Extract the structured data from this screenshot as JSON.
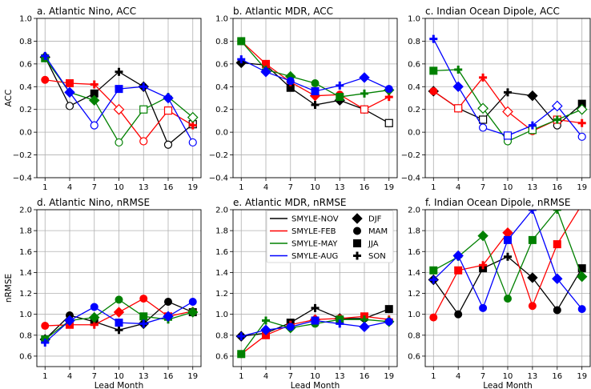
{
  "legend": {
    "series": [
      {
        "label": "SMYLE-NOV",
        "color": "#000000"
      },
      {
        "label": "SMYLE-FEB",
        "color": "#ff0000"
      },
      {
        "label": "SMYLE-MAY",
        "color": "#008000"
      },
      {
        "label": "SMYLE-AUG",
        "color": "#0000ff"
      }
    ],
    "markers": [
      {
        "label": "DJF",
        "marker": "diamond"
      },
      {
        "label": "MAM",
        "marker": "circle"
      },
      {
        "label": "JJA",
        "marker": "square"
      },
      {
        "label": "SON",
        "marker": "plus"
      }
    ]
  },
  "chart_data": [
    {
      "type": "line",
      "title": "a. Atlantic Nino, ACC",
      "xlabel": "",
      "ylabel": "ACC",
      "x": [
        1,
        4,
        7,
        10,
        13,
        16,
        19
      ],
      "ylim": [
        -0.4,
        1.0
      ],
      "yticks": [
        "−0.4",
        "−0.2",
        "0.0",
        "0.2",
        "0.4",
        "0.6",
        "0.8",
        "1.0"
      ],
      "series": [
        {
          "name": "SMYLE-NOV",
          "color": "#000000",
          "values": [
            0.66,
            0.23,
            0.34,
            0.53,
            0.4,
            -0.11,
            0.07
          ],
          "markers": [
            "diamond",
            "circle-o",
            "square",
            "plus",
            "diamond",
            "circle-o",
            "square-o"
          ]
        },
        {
          "name": "SMYLE-FEB",
          "color": "#ff0000",
          "values": [
            0.46,
            0.43,
            0.42,
            0.2,
            -0.08,
            0.19,
            0.06
          ],
          "markers": [
            "circle",
            "square",
            "plus",
            "diamond-o",
            "circle-o",
            "square-o",
            "plus"
          ]
        },
        {
          "name": "SMYLE-MAY",
          "color": "#008000",
          "values": [
            0.65,
            0.35,
            0.28,
            -0.09,
            0.2,
            0.31,
            0.13
          ],
          "markers": [
            "square",
            "plus",
            "diamond",
            "circle-o",
            "square-o",
            "plus",
            "diamond-o"
          ]
        },
        {
          "name": "SMYLE-AUG",
          "color": "#0000ff",
          "values": [
            0.67,
            0.35,
            0.06,
            0.38,
            0.4,
            0.3,
            -0.09
          ],
          "markers": [
            "plus",
            "diamond",
            "circle-o",
            "square",
            "plus",
            "diamond",
            "circle-o"
          ]
        }
      ]
    },
    {
      "type": "line",
      "title": "b. Atlantic MDR, ACC",
      "xlabel": "",
      "ylabel": "",
      "x": [
        1,
        4,
        7,
        10,
        13,
        16,
        19
      ],
      "ylim": [
        -0.4,
        1.0
      ],
      "yticks": [
        "−0.4",
        "−0.2",
        "0.0",
        "0.2",
        "0.4",
        "0.6",
        "0.8",
        "1.0"
      ],
      "series": [
        {
          "name": "SMYLE-NOV",
          "color": "#000000",
          "values": [
            0.61,
            0.59,
            0.39,
            0.24,
            0.28,
            0.2,
            0.08
          ],
          "markers": [
            "diamond",
            "circle",
            "square",
            "plus",
            "diamond",
            "circle-o",
            "square-o"
          ]
        },
        {
          "name": "SMYLE-FEB",
          "color": "#ff0000",
          "values": [
            0.8,
            0.6,
            0.44,
            0.32,
            0.33,
            0.2,
            0.31
          ],
          "markers": [
            "circle",
            "square",
            "plus",
            "diamond",
            "circle",
            "square-o",
            "plus"
          ]
        },
        {
          "name": "SMYLE-MAY",
          "color": "#008000",
          "values": [
            0.8,
            0.55,
            0.49,
            0.43,
            0.31,
            0.34,
            0.37
          ],
          "markers": [
            "square",
            "plus",
            "diamond",
            "circle",
            "square",
            "plus",
            "diamond"
          ]
        },
        {
          "name": "SMYLE-AUG",
          "color": "#0000ff",
          "values": [
            0.64,
            0.53,
            0.45,
            0.36,
            0.41,
            0.48,
            0.38
          ],
          "markers": [
            "plus",
            "diamond",
            "circle",
            "square",
            "plus",
            "diamond",
            "circle"
          ]
        }
      ]
    },
    {
      "type": "line",
      "title": "c. Indian Ocean Dipole, ACC",
      "xlabel": "",
      "ylabel": "",
      "x": [
        1,
        4,
        7,
        10,
        13,
        16,
        19
      ],
      "ylim": [
        -0.4,
        1.0
      ],
      "yticks": [
        "−0.4",
        "−0.2",
        "0.0",
        "0.2",
        "0.4",
        "0.6",
        "0.8",
        "1.0"
      ],
      "series": [
        {
          "name": "SMYLE-NOV",
          "color": "#000000",
          "values": [
            0.36,
            0.21,
            0.11,
            0.35,
            0.32,
            0.06,
            0.25
          ],
          "markers": [
            "diamond",
            "circle-o",
            "square-o",
            "plus",
            "diamond",
            "circle-o",
            "square"
          ]
        },
        {
          "name": "SMYLE-FEB",
          "color": "#ff0000",
          "values": [
            0.36,
            0.21,
            0.48,
            0.18,
            0.01,
            0.11,
            0.08
          ],
          "markers": [
            "circle",
            "square-o",
            "plus",
            "diamond-o",
            "circle-o",
            "square-o",
            "plus"
          ]
        },
        {
          "name": "SMYLE-MAY",
          "color": "#008000",
          "values": [
            0.54,
            0.55,
            0.21,
            -0.08,
            0.02,
            0.11,
            0.2
          ],
          "markers": [
            "square",
            "plus",
            "diamond-o",
            "circle-o",
            "square-o",
            "plus",
            "diamond-o"
          ]
        },
        {
          "name": "SMYLE-AUG",
          "color": "#0000ff",
          "values": [
            0.82,
            0.4,
            0.04,
            -0.03,
            0.06,
            0.23,
            -0.04
          ],
          "markers": [
            "plus",
            "diamond",
            "circle-o",
            "square-o",
            "plus",
            "diamond-o",
            "circle-o"
          ]
        }
      ]
    },
    {
      "type": "line",
      "title": "d. Atlantic Nino, nRMSE",
      "xlabel": "Lead Month",
      "ylabel": "nRMSE",
      "x": [
        1,
        4,
        7,
        10,
        13,
        16,
        19
      ],
      "ylim": [
        0.5,
        2.0
      ],
      "yticks": [
        "0.6",
        "0.8",
        "1.0",
        "1.2",
        "1.4",
        "1.6",
        "1.8",
        "2.0"
      ],
      "series": [
        {
          "name": "SMYLE-NOV",
          "color": "#000000",
          "values": [
            0.76,
            0.99,
            0.93,
            0.85,
            0.91,
            1.12,
            1.02
          ],
          "markers": [
            "diamond",
            "circle",
            "square",
            "plus",
            "diamond",
            "circle",
            "square"
          ]
        },
        {
          "name": "SMYLE-FEB",
          "color": "#ff0000",
          "values": [
            0.89,
            0.9,
            0.9,
            1.02,
            1.15,
            0.98,
            1.03
          ],
          "markers": [
            "circle",
            "square",
            "plus",
            "diamond",
            "circle",
            "square",
            "plus"
          ]
        },
        {
          "name": "SMYLE-MAY",
          "color": "#008000",
          "values": [
            0.76,
            0.94,
            0.97,
            1.14,
            0.98,
            0.95,
            1.02
          ],
          "markers": [
            "square",
            "plus",
            "diamond",
            "circle",
            "square",
            "plus",
            "diamond"
          ]
        },
        {
          "name": "SMYLE-AUG",
          "color": "#0000ff",
          "values": [
            0.73,
            0.94,
            1.07,
            0.92,
            0.91,
            0.98,
            1.12
          ],
          "markers": [
            "plus",
            "diamond",
            "circle",
            "square",
            "plus",
            "diamond",
            "circle"
          ]
        }
      ]
    },
    {
      "type": "line",
      "title": "e. Atlantic MDR, nRMSE",
      "xlabel": "Lead Month",
      "ylabel": "",
      "x": [
        1,
        4,
        7,
        10,
        13,
        16,
        19
      ],
      "ylim": [
        0.5,
        2.0
      ],
      "yticks": [
        "0.6",
        "0.8",
        "1.0",
        "1.2",
        "1.4",
        "1.6",
        "1.8",
        "2.0"
      ],
      "series": [
        {
          "name": "SMYLE-NOV",
          "color": "#000000",
          "values": [
            0.79,
            0.82,
            0.92,
            1.06,
            0.96,
            0.96,
            1.05
          ],
          "markers": [
            "diamond",
            "circle",
            "square",
            "plus",
            "diamond",
            "circle",
            "square"
          ]
        },
        {
          "name": "SMYLE-FEB",
          "color": "#ff0000",
          "values": [
            0.62,
            0.8,
            0.9,
            0.95,
            0.96,
            0.98,
            0.95
          ],
          "markers": [
            "circle",
            "square",
            "plus",
            "diamond",
            "circle",
            "square",
            "plus"
          ]
        },
        {
          "name": "SMYLE-MAY",
          "color": "#008000",
          "values": [
            0.62,
            0.94,
            0.87,
            0.91,
            0.95,
            0.95,
            0.93
          ],
          "markers": [
            "square",
            "plus",
            "diamond",
            "circle",
            "square",
            "plus",
            "diamond"
          ]
        },
        {
          "name": "SMYLE-AUG",
          "color": "#0000ff",
          "values": [
            0.79,
            0.85,
            0.88,
            0.94,
            0.91,
            0.88,
            0.93
          ],
          "markers": [
            "plus",
            "diamond",
            "circle",
            "square",
            "plus",
            "diamond",
            "circle"
          ]
        }
      ]
    },
    {
      "type": "line",
      "title": "f. Indian Ocean Dipole, nRMSE",
      "xlabel": "Lead Month",
      "ylabel": "",
      "x": [
        1,
        4,
        7,
        10,
        13,
        16,
        19
      ],
      "ylim": [
        0.5,
        2.0
      ],
      "yticks": [
        "0.6",
        "0.8",
        "1.0",
        "1.2",
        "1.4",
        "1.6",
        "1.8",
        "2.0"
      ],
      "series": [
        {
          "name": "SMYLE-NOV",
          "color": "#000000",
          "values": [
            1.33,
            1.0,
            1.44,
            1.55,
            1.35,
            1.04,
            1.44
          ],
          "markers": [
            "diamond",
            "circle",
            "square",
            "plus",
            "diamond",
            "circle",
            "square"
          ]
        },
        {
          "name": "SMYLE-FEB",
          "color": "#ff0000",
          "values": [
            0.97,
            1.42,
            1.47,
            1.78,
            1.08,
            1.67,
            2.05
          ],
          "markers": [
            "circle",
            "square",
            "plus",
            "diamond",
            "circle",
            "square",
            "plus"
          ]
        },
        {
          "name": "SMYLE-MAY",
          "color": "#008000",
          "values": [
            1.42,
            1.55,
            1.75,
            1.15,
            1.71,
            2.0,
            1.36
          ],
          "markers": [
            "square",
            "plus",
            "diamond",
            "circle",
            "square",
            "plus",
            "diamond"
          ]
        },
        {
          "name": "SMYLE-AUG",
          "color": "#0000ff",
          "values": [
            1.33,
            1.56,
            1.06,
            1.71,
            2.0,
            1.34,
            1.05
          ],
          "markers": [
            "plus",
            "diamond",
            "circle",
            "square",
            "plus",
            "diamond",
            "circle"
          ]
        }
      ]
    }
  ]
}
